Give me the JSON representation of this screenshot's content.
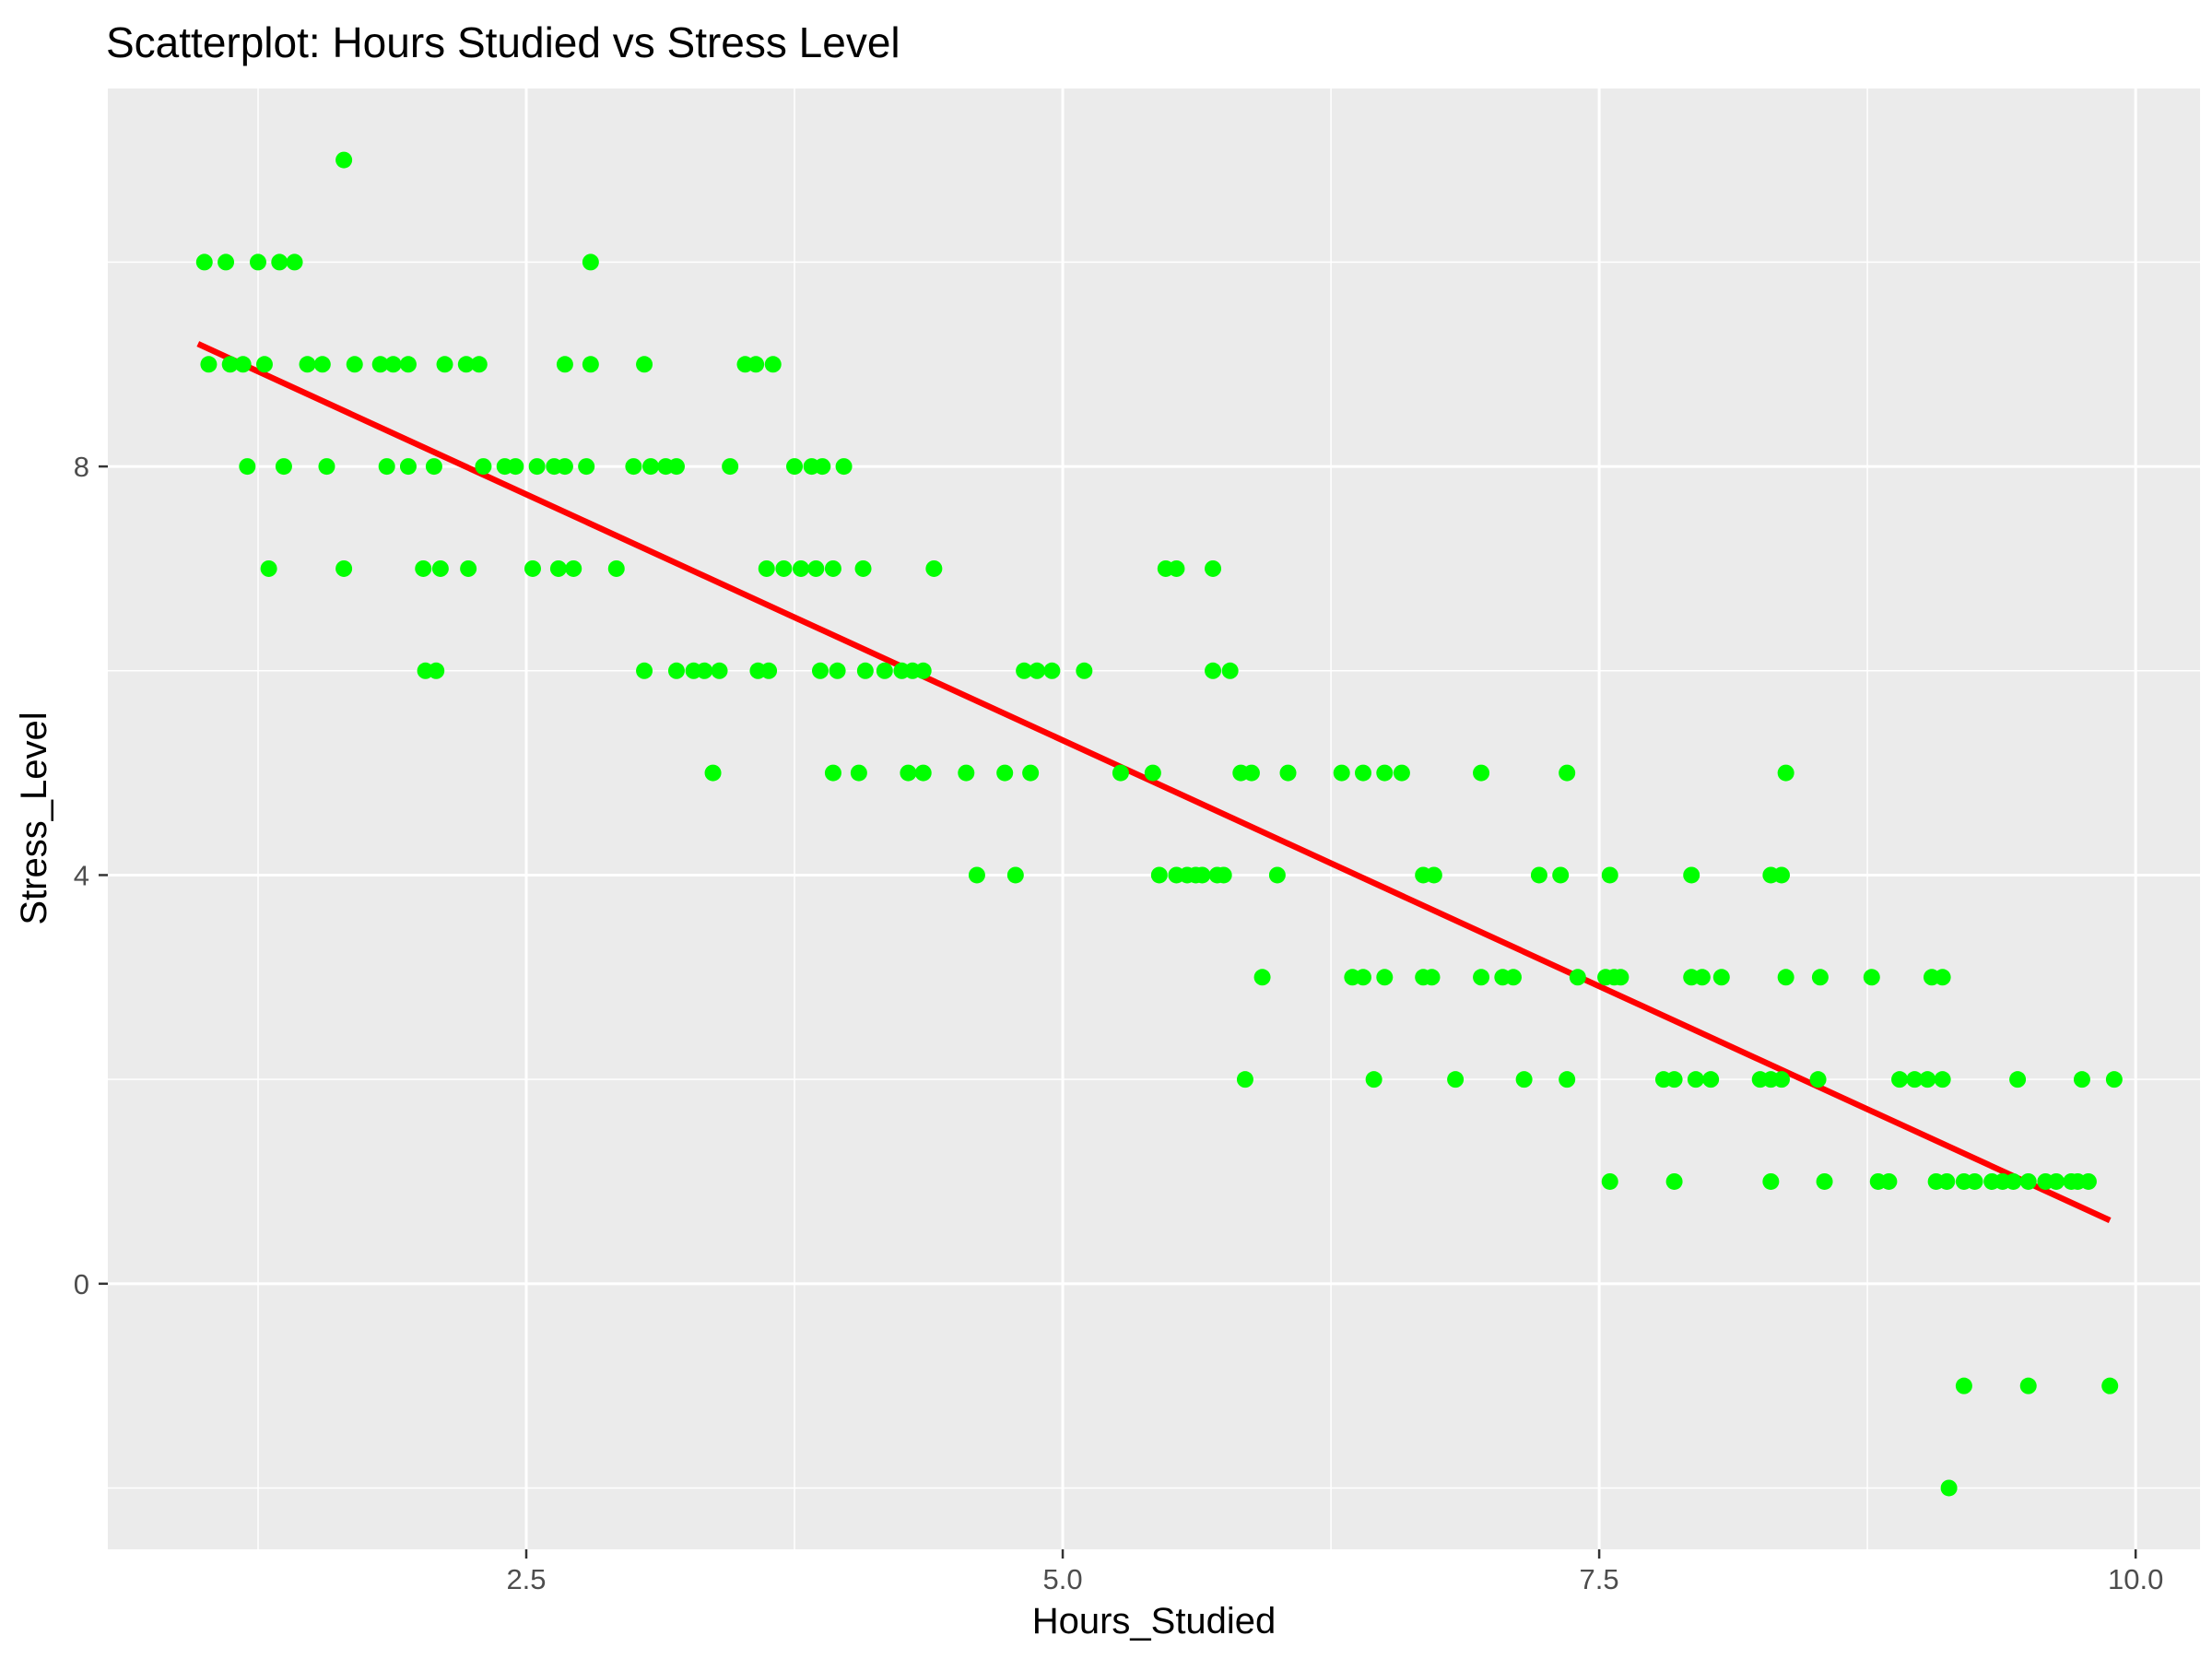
{
  "chart_data": {
    "type": "scatter",
    "title": "Scatterplot: Hours Studied vs Stress Level",
    "xlabel": "Hours_Studied",
    "ylabel": "Stress_Level",
    "xlim": [
      0.55,
      10.3
    ],
    "ylim": [
      -2.6,
      11.7
    ],
    "x_ticks": [
      2.5,
      5.0,
      7.5,
      10.0
    ],
    "x_tick_labels": [
      "2.5",
      "5.0",
      "7.5",
      "10.0"
    ],
    "x_minor_ticks": [
      1.25,
      3.75,
      6.25,
      8.75
    ],
    "y_ticks": [
      0,
      4,
      8
    ],
    "y_tick_labels": [
      "0",
      "4",
      "8"
    ],
    "y_minor_ticks": [
      -2,
      2,
      6,
      10
    ],
    "grid": true,
    "colors": {
      "panel": "#ebebeb",
      "grid": "#ffffff",
      "points": "#00ff00",
      "fit_line": "#ff0000"
    },
    "points": [
      {
        "x": 1.0,
        "y": 10
      },
      {
        "x": 1.1,
        "y": 10
      },
      {
        "x": 1.25,
        "y": 10
      },
      {
        "x": 1.35,
        "y": 10
      },
      {
        "x": 1.42,
        "y": 10
      },
      {
        "x": 2.8,
        "y": 10
      },
      {
        "x": 1.65,
        "y": 11
      },
      {
        "x": 1.02,
        "y": 9
      },
      {
        "x": 1.12,
        "y": 9
      },
      {
        "x": 1.18,
        "y": 9
      },
      {
        "x": 1.28,
        "y": 9
      },
      {
        "x": 1.48,
        "y": 9
      },
      {
        "x": 1.55,
        "y": 9
      },
      {
        "x": 1.7,
        "y": 9
      },
      {
        "x": 1.82,
        "y": 9
      },
      {
        "x": 1.88,
        "y": 9
      },
      {
        "x": 1.95,
        "y": 9
      },
      {
        "x": 2.12,
        "y": 9
      },
      {
        "x": 2.22,
        "y": 9
      },
      {
        "x": 2.28,
        "y": 9
      },
      {
        "x": 2.68,
        "y": 9
      },
      {
        "x": 2.8,
        "y": 9
      },
      {
        "x": 3.05,
        "y": 9
      },
      {
        "x": 3.52,
        "y": 9
      },
      {
        "x": 3.57,
        "y": 9
      },
      {
        "x": 3.65,
        "y": 9
      },
      {
        "x": 1.2,
        "y": 8
      },
      {
        "x": 1.37,
        "y": 8
      },
      {
        "x": 1.57,
        "y": 8
      },
      {
        "x": 1.85,
        "y": 8
      },
      {
        "x": 1.95,
        "y": 8
      },
      {
        "x": 2.07,
        "y": 8
      },
      {
        "x": 2.3,
        "y": 8
      },
      {
        "x": 2.4,
        "y": 8
      },
      {
        "x": 2.45,
        "y": 8
      },
      {
        "x": 2.55,
        "y": 8
      },
      {
        "x": 2.63,
        "y": 8
      },
      {
        "x": 2.68,
        "y": 8
      },
      {
        "x": 2.78,
        "y": 8
      },
      {
        "x": 3.0,
        "y": 8
      },
      {
        "x": 3.08,
        "y": 8
      },
      {
        "x": 3.15,
        "y": 8
      },
      {
        "x": 3.2,
        "y": 8
      },
      {
        "x": 3.45,
        "y": 8
      },
      {
        "x": 3.75,
        "y": 8
      },
      {
        "x": 3.83,
        "y": 8
      },
      {
        "x": 3.88,
        "y": 8
      },
      {
        "x": 3.98,
        "y": 8
      },
      {
        "x": 1.3,
        "y": 7
      },
      {
        "x": 1.65,
        "y": 7
      },
      {
        "x": 2.02,
        "y": 7
      },
      {
        "x": 2.1,
        "y": 7
      },
      {
        "x": 2.23,
        "y": 7
      },
      {
        "x": 2.53,
        "y": 7
      },
      {
        "x": 2.65,
        "y": 7
      },
      {
        "x": 2.72,
        "y": 7
      },
      {
        "x": 2.92,
        "y": 7
      },
      {
        "x": 3.62,
        "y": 7
      },
      {
        "x": 3.7,
        "y": 7
      },
      {
        "x": 3.78,
        "y": 7
      },
      {
        "x": 3.85,
        "y": 7
      },
      {
        "x": 3.93,
        "y": 7
      },
      {
        "x": 4.07,
        "y": 7
      },
      {
        "x": 4.4,
        "y": 7
      },
      {
        "x": 5.48,
        "y": 7
      },
      {
        "x": 5.53,
        "y": 7
      },
      {
        "x": 5.7,
        "y": 7
      },
      {
        "x": 2.03,
        "y": 6
      },
      {
        "x": 2.08,
        "y": 6
      },
      {
        "x": 3.05,
        "y": 6
      },
      {
        "x": 3.2,
        "y": 6
      },
      {
        "x": 3.28,
        "y": 6
      },
      {
        "x": 3.33,
        "y": 6
      },
      {
        "x": 3.4,
        "y": 6
      },
      {
        "x": 3.58,
        "y": 6
      },
      {
        "x": 3.63,
        "y": 6
      },
      {
        "x": 3.87,
        "y": 6
      },
      {
        "x": 3.95,
        "y": 6
      },
      {
        "x": 4.08,
        "y": 6
      },
      {
        "x": 4.17,
        "y": 6
      },
      {
        "x": 4.25,
        "y": 6
      },
      {
        "x": 4.3,
        "y": 6
      },
      {
        "x": 4.35,
        "y": 6
      },
      {
        "x": 4.82,
        "y": 6
      },
      {
        "x": 4.88,
        "y": 6
      },
      {
        "x": 4.95,
        "y": 6
      },
      {
        "x": 5.1,
        "y": 6
      },
      {
        "x": 5.7,
        "y": 6
      },
      {
        "x": 5.78,
        "y": 6
      },
      {
        "x": 3.37,
        "y": 5
      },
      {
        "x": 3.93,
        "y": 5
      },
      {
        "x": 4.05,
        "y": 5
      },
      {
        "x": 4.28,
        "y": 5
      },
      {
        "x": 4.35,
        "y": 5
      },
      {
        "x": 4.55,
        "y": 5
      },
      {
        "x": 4.73,
        "y": 5
      },
      {
        "x": 4.85,
        "y": 5
      },
      {
        "x": 5.27,
        "y": 5
      },
      {
        "x": 5.42,
        "y": 5
      },
      {
        "x": 5.83,
        "y": 5
      },
      {
        "x": 5.88,
        "y": 5
      },
      {
        "x": 6.05,
        "y": 5
      },
      {
        "x": 6.3,
        "y": 5
      },
      {
        "x": 6.4,
        "y": 5
      },
      {
        "x": 6.5,
        "y": 5
      },
      {
        "x": 6.58,
        "y": 5
      },
      {
        "x": 6.95,
        "y": 5
      },
      {
        "x": 7.35,
        "y": 5
      },
      {
        "x": 8.37,
        "y": 5
      },
      {
        "x": 4.6,
        "y": 4
      },
      {
        "x": 4.78,
        "y": 4
      },
      {
        "x": 5.45,
        "y": 4
      },
      {
        "x": 5.53,
        "y": 4
      },
      {
        "x": 5.58,
        "y": 4
      },
      {
        "x": 5.62,
        "y": 4
      },
      {
        "x": 5.65,
        "y": 4
      },
      {
        "x": 5.72,
        "y": 4
      },
      {
        "x": 5.75,
        "y": 4
      },
      {
        "x": 6.0,
        "y": 4
      },
      {
        "x": 6.68,
        "y": 4
      },
      {
        "x": 6.73,
        "y": 4
      },
      {
        "x": 7.22,
        "y": 4
      },
      {
        "x": 7.32,
        "y": 4
      },
      {
        "x": 7.55,
        "y": 4
      },
      {
        "x": 7.93,
        "y": 4
      },
      {
        "x": 8.3,
        "y": 4
      },
      {
        "x": 8.35,
        "y": 4
      },
      {
        "x": 5.93,
        "y": 3
      },
      {
        "x": 6.35,
        "y": 3
      },
      {
        "x": 6.4,
        "y": 3
      },
      {
        "x": 6.5,
        "y": 3
      },
      {
        "x": 6.68,
        "y": 3
      },
      {
        "x": 6.72,
        "y": 3
      },
      {
        "x": 6.95,
        "y": 3
      },
      {
        "x": 7.05,
        "y": 3
      },
      {
        "x": 7.1,
        "y": 3
      },
      {
        "x": 7.4,
        "y": 3
      },
      {
        "x": 7.53,
        "y": 3
      },
      {
        "x": 7.57,
        "y": 3
      },
      {
        "x": 7.6,
        "y": 3
      },
      {
        "x": 7.93,
        "y": 3
      },
      {
        "x": 7.98,
        "y": 3
      },
      {
        "x": 8.07,
        "y": 3
      },
      {
        "x": 8.37,
        "y": 3
      },
      {
        "x": 8.53,
        "y": 3
      },
      {
        "x": 8.77,
        "y": 3
      },
      {
        "x": 9.05,
        "y": 3
      },
      {
        "x": 9.1,
        "y": 3
      },
      {
        "x": 5.85,
        "y": 2
      },
      {
        "x": 6.45,
        "y": 2
      },
      {
        "x": 6.83,
        "y": 2
      },
      {
        "x": 7.15,
        "y": 2
      },
      {
        "x": 7.35,
        "y": 2
      },
      {
        "x": 7.8,
        "y": 2
      },
      {
        "x": 7.85,
        "y": 2
      },
      {
        "x": 7.95,
        "y": 2
      },
      {
        "x": 8.02,
        "y": 2
      },
      {
        "x": 8.25,
        "y": 2
      },
      {
        "x": 8.3,
        "y": 2
      },
      {
        "x": 8.35,
        "y": 2
      },
      {
        "x": 8.52,
        "y": 2
      },
      {
        "x": 8.9,
        "y": 2
      },
      {
        "x": 8.97,
        "y": 2
      },
      {
        "x": 9.03,
        "y": 2
      },
      {
        "x": 9.1,
        "y": 2
      },
      {
        "x": 9.45,
        "y": 2
      },
      {
        "x": 9.75,
        "y": 2
      },
      {
        "x": 9.9,
        "y": 2
      },
      {
        "x": 7.55,
        "y": 1
      },
      {
        "x": 7.85,
        "y": 1
      },
      {
        "x": 8.3,
        "y": 1
      },
      {
        "x": 8.55,
        "y": 1
      },
      {
        "x": 8.8,
        "y": 1
      },
      {
        "x": 8.85,
        "y": 1
      },
      {
        "x": 9.07,
        "y": 1
      },
      {
        "x": 9.12,
        "y": 1
      },
      {
        "x": 9.2,
        "y": 1
      },
      {
        "x": 9.25,
        "y": 1
      },
      {
        "x": 9.33,
        "y": 1
      },
      {
        "x": 9.38,
        "y": 1
      },
      {
        "x": 9.43,
        "y": 1
      },
      {
        "x": 9.5,
        "y": 1
      },
      {
        "x": 9.58,
        "y": 1
      },
      {
        "x": 9.63,
        "y": 1
      },
      {
        "x": 9.7,
        "y": 1
      },
      {
        "x": 9.73,
        "y": 1
      },
      {
        "x": 9.78,
        "y": 1
      },
      {
        "x": 9.2,
        "y": -1
      },
      {
        "x": 9.5,
        "y": -1
      },
      {
        "x": 9.88,
        "y": -1
      },
      {
        "x": 9.13,
        "y": -2
      }
    ],
    "fit_line": {
      "x": [
        0.97,
        9.88
      ],
      "y": [
        9.2,
        0.62
      ]
    }
  }
}
